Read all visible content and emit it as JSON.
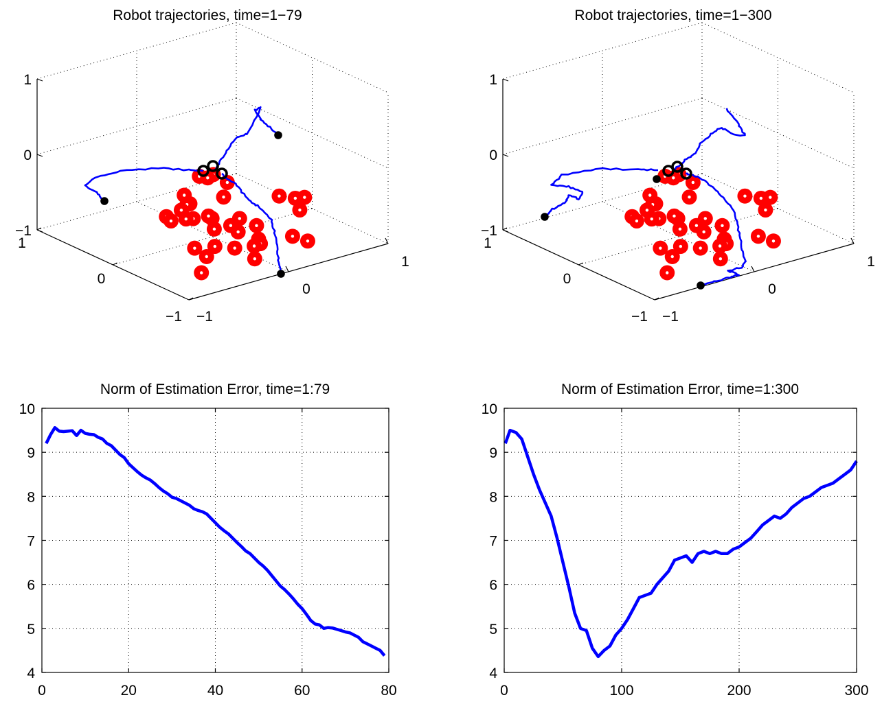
{
  "chart_data": [
    {
      "type": "scatter",
      "subtype": "3d-trajectory",
      "title": "Robot trajectories, time=1−79",
      "x_ticks": [
        "−1",
        "0",
        "1"
      ],
      "y_ticks": [
        "−1",
        "0",
        "1"
      ],
      "z_ticks": [
        "−1",
        "0",
        "1"
      ],
      "xlim": [
        -1,
        1
      ],
      "ylim": [
        -1,
        1
      ],
      "zlim": [
        -1,
        1
      ],
      "grid": true,
      "landmark_color": "#ff0000",
      "trajectory_color": "#0000ff",
      "robot_marker_color": "#000000",
      "landmarks": [
        [
          -0.83,
          0.64,
          -0.8
        ],
        [
          -0.87,
          0.53,
          -0.8
        ],
        [
          -0.8,
          0.56,
          -0.8
        ],
        [
          -0.62,
          0.62,
          -0.8
        ],
        [
          -0.61,
          0.18,
          -0.8
        ],
        [
          -0.43,
          0.1,
          -0.8
        ],
        [
          -0.43,
          0.07,
          -0.8
        ],
        [
          -0.36,
          -0.04,
          -0.8
        ],
        [
          -0.32,
          -0.22,
          -0.8
        ],
        [
          -0.38,
          0.4,
          -0.8
        ],
        [
          -0.22,
          -0.25,
          -0.8
        ],
        [
          -0.15,
          -0.08,
          -0.8
        ],
        [
          -0.06,
          0.04,
          -0.8
        ],
        [
          -0.18,
          -0.13,
          -0.8
        ],
        [
          0.08,
          0.21,
          -0.8
        ],
        [
          0.16,
          0.06,
          -0.8
        ],
        [
          0.14,
          -0.09,
          -0.8
        ],
        [
          0.45,
          -0.32,
          -0.8
        ],
        [
          0.38,
          -0.47,
          -0.8
        ],
        [
          0.59,
          -0.51,
          -0.8
        ],
        [
          0.29,
          0.22,
          -0.8
        ],
        [
          0.31,
          0.02,
          -0.8
        ],
        [
          0.58,
          -0.22,
          -0.8
        ],
        [
          0.85,
          -0.76,
          -0.8
        ],
        [
          -0.12,
          0.05,
          -0.8
        ],
        [
          0.54,
          0.05,
          -0.8
        ],
        [
          0.63,
          0.0,
          -0.8
        ],
        [
          0.87,
          -0.24,
          -0.8
        ],
        [
          0.64,
          -0.07,
          -0.8
        ],
        [
          0.66,
          0.3,
          -0.8
        ],
        [
          0.82,
          0.33,
          -0.8
        ],
        [
          -0.12,
          0.76,
          -0.8
        ],
        [
          0.0,
          0.83,
          -0.8
        ],
        [
          0.03,
          0.9,
          -0.8
        ],
        [
          0.23,
          0.7,
          -0.8
        ]
      ],
      "robot_start": [
        [
          -0.55,
          0.45,
          -0.8
        ],
        [
          0.66,
          0.49,
          -0.8
        ],
        [
          0.96,
          -0.49,
          -0.8
        ]
      ],
      "robot_end": [
        [
          0.34,
          -0.36,
          -0.23
        ],
        [
          0.49,
          -0.33,
          -0.23
        ],
        [
          0.56,
          -0.4,
          -0.23
        ]
      ]
    },
    {
      "type": "scatter",
      "subtype": "3d-trajectory",
      "title": "Robot trajectories, time=1−300",
      "x_ticks": [
        "−1",
        "0",
        "1"
      ],
      "y_ticks": [
        "−1",
        "0",
        "1"
      ],
      "z_ticks": [
        "−1",
        "0",
        "1"
      ],
      "xlim": [
        -1,
        1
      ],
      "ylim": [
        -1,
        1
      ],
      "zlim": [
        -1,
        1
      ],
      "grid": true,
      "landmark_color": "#ff0000",
      "trajectory_color": "#0000ff",
      "robot_marker_color": "#000000",
      "landmarks": [
        [
          -0.83,
          0.64,
          -0.8
        ],
        [
          -0.87,
          0.53,
          -0.8
        ],
        [
          -0.8,
          0.56,
          -0.8
        ],
        [
          -0.62,
          0.62,
          -0.8
        ],
        [
          -0.61,
          0.18,
          -0.8
        ],
        [
          -0.43,
          0.1,
          -0.8
        ],
        [
          -0.43,
          0.07,
          -0.8
        ],
        [
          -0.36,
          -0.04,
          -0.8
        ],
        [
          -0.32,
          -0.22,
          -0.8
        ],
        [
          -0.38,
          0.4,
          -0.8
        ],
        [
          -0.22,
          -0.25,
          -0.8
        ],
        [
          -0.15,
          -0.08,
          -0.8
        ],
        [
          -0.06,
          0.04,
          -0.8
        ],
        [
          -0.18,
          -0.13,
          -0.8
        ],
        [
          0.08,
          0.21,
          -0.8
        ],
        [
          0.16,
          0.06,
          -0.8
        ],
        [
          0.14,
          -0.09,
          -0.8
        ],
        [
          0.45,
          -0.32,
          -0.8
        ],
        [
          0.38,
          -0.47,
          -0.8
        ],
        [
          0.59,
          -0.51,
          -0.8
        ],
        [
          0.29,
          0.22,
          -0.8
        ],
        [
          0.31,
          0.02,
          -0.8
        ],
        [
          0.58,
          -0.22,
          -0.8
        ],
        [
          0.85,
          -0.76,
          -0.8
        ],
        [
          -0.12,
          0.05,
          -0.8
        ],
        [
          0.54,
          0.05,
          -0.8
        ],
        [
          0.63,
          0.0,
          -0.8
        ],
        [
          0.87,
          -0.24,
          -0.8
        ],
        [
          0.64,
          -0.07,
          -0.8
        ],
        [
          0.66,
          0.3,
          -0.8
        ],
        [
          0.82,
          0.33,
          -0.8
        ],
        [
          -0.12,
          0.76,
          -0.8
        ],
        [
          0.0,
          0.83,
          -0.8
        ],
        [
          0.03,
          0.9,
          -0.8
        ],
        [
          0.23,
          0.7,
          -0.8
        ]
      ],
      "robot_start": [
        [
          -0.55,
          0.45,
          -0.8
        ],
        [
          0.66,
          0.49,
          -0.8
        ],
        [
          0.96,
          -0.49,
          -0.8
        ]
      ],
      "robot_end": [
        [
          0.37,
          -0.36,
          -0.23
        ],
        [
          0.49,
          -0.33,
          -0.23
        ],
        [
          0.56,
          -0.4,
          -0.23
        ]
      ]
    },
    {
      "type": "line",
      "title": "Norm of Estimation Error, time=1:79",
      "xlabel": "",
      "ylabel": "",
      "xlim": [
        0,
        80
      ],
      "ylim": [
        4,
        10
      ],
      "x_ticks": [
        0,
        20,
        40,
        60,
        80
      ],
      "y_ticks": [
        4,
        5,
        6,
        7,
        8,
        9,
        10
      ],
      "grid": true,
      "series": [
        {
          "color": "#0000ff",
          "x": [
            1,
            2,
            3,
            4,
            5,
            6,
            7,
            8,
            9,
            10,
            11,
            12,
            13,
            14,
            15,
            16,
            17,
            18,
            19,
            20,
            21,
            22,
            23,
            24,
            25,
            26,
            27,
            28,
            29,
            30,
            31,
            32,
            33,
            34,
            35,
            36,
            37,
            38,
            39,
            40,
            41,
            42,
            43,
            44,
            45,
            46,
            47,
            48,
            49,
            50,
            51,
            52,
            53,
            54,
            55,
            56,
            57,
            58,
            59,
            60,
            61,
            62,
            63,
            64,
            65,
            66,
            67,
            68,
            69,
            70,
            71,
            72,
            73,
            74,
            75,
            76,
            77,
            78,
            79
          ],
          "y": [
            9.2,
            9.4,
            9.56,
            9.48,
            9.47,
            9.48,
            9.49,
            9.38,
            9.5,
            9.43,
            9.41,
            9.4,
            9.34,
            9.3,
            9.2,
            9.15,
            9.05,
            8.95,
            8.88,
            8.74,
            8.65,
            8.56,
            8.48,
            8.42,
            8.37,
            8.29,
            8.2,
            8.12,
            8.06,
            7.98,
            7.95,
            7.9,
            7.85,
            7.8,
            7.72,
            7.68,
            7.65,
            7.6,
            7.5,
            7.4,
            7.3,
            7.22,
            7.15,
            7.05,
            6.95,
            6.86,
            6.76,
            6.7,
            6.6,
            6.5,
            6.42,
            6.32,
            6.2,
            6.08,
            5.96,
            5.88,
            5.78,
            5.67,
            5.55,
            5.45,
            5.32,
            5.18,
            5.1,
            5.08,
            5.0,
            5.02,
            5.01,
            4.98,
            4.95,
            4.92,
            4.9,
            4.85,
            4.8,
            4.7,
            4.65,
            4.6,
            4.55,
            4.5,
            4.38
          ]
        }
      ]
    },
    {
      "type": "line",
      "title": "Norm of Estimation Error, time=1:300",
      "xlabel": "",
      "ylabel": "",
      "xlim": [
        0,
        300
      ],
      "ylim": [
        4,
        10
      ],
      "x_ticks": [
        0,
        100,
        200,
        300
      ],
      "y_ticks": [
        4,
        5,
        6,
        7,
        8,
        9,
        10
      ],
      "grid": true,
      "series": [
        {
          "color": "#0000ff",
          "x": [
            1,
            5,
            10,
            15,
            20,
            25,
            30,
            35,
            40,
            45,
            50,
            55,
            60,
            65,
            70,
            75,
            80,
            85,
            90,
            95,
            100,
            105,
            110,
            115,
            120,
            125,
            130,
            135,
            140,
            145,
            150,
            155,
            160,
            165,
            170,
            175,
            180,
            185,
            190,
            195,
            200,
            205,
            210,
            215,
            220,
            225,
            230,
            235,
            240,
            245,
            250,
            255,
            260,
            265,
            270,
            275,
            280,
            285,
            290,
            295,
            300
          ],
          "y": [
            9.2,
            9.5,
            9.45,
            9.3,
            8.9,
            8.5,
            8.15,
            7.85,
            7.55,
            7.05,
            6.5,
            5.95,
            5.35,
            5.0,
            4.95,
            4.55,
            4.36,
            4.5,
            4.6,
            4.85,
            5.0,
            5.2,
            5.45,
            5.7,
            5.75,
            5.8,
            6.0,
            6.15,
            6.3,
            6.55,
            6.6,
            6.65,
            6.5,
            6.7,
            6.75,
            6.7,
            6.75,
            6.7,
            6.7,
            6.8,
            6.85,
            6.95,
            7.05,
            7.2,
            7.35,
            7.45,
            7.55,
            7.5,
            7.6,
            7.75,
            7.85,
            7.95,
            8.0,
            8.1,
            8.2,
            8.25,
            8.3,
            8.4,
            8.5,
            8.6,
            8.8
          ]
        }
      ]
    }
  ]
}
